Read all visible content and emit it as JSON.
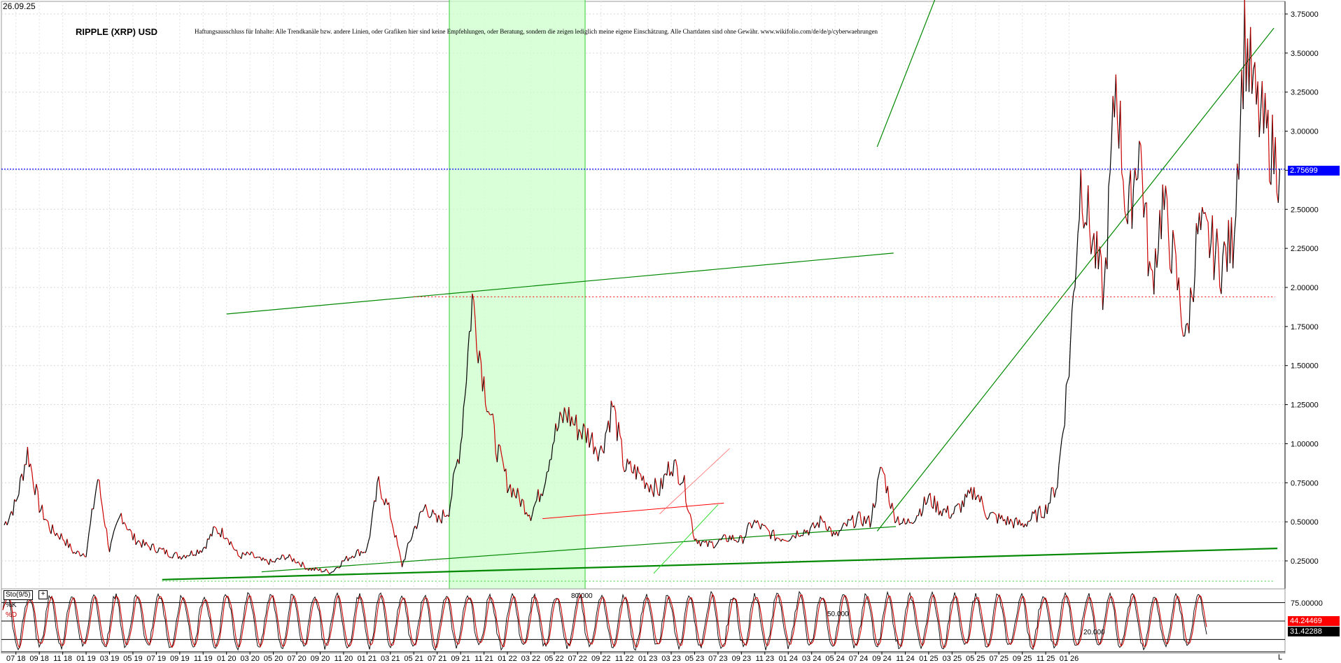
{
  "header": {
    "date": "26.09.25",
    "title": "RIPPLE (XRP) USD",
    "disclaimer": "Haftungsausschluss für Inhalte: Alle Trendkanäle bzw. andere Linien, oder Grafiken hier sind keine Empfehlungen, oder Beratung, sondern die zeigen lediglich meine eigene Einschätzung. Alle Chartdaten sind ohne Gewähr.  www.wikifolio.com/de/de/p/cyberwaehrungen"
  },
  "colors": {
    "price_up": "#000000",
    "price_down": "#cc0000",
    "trend": "#008800",
    "highlight": "#ccffcc",
    "current_line": "#0000ff",
    "support_line": "#ff0000",
    "stoch_k": "#000000",
    "stoch_d": "#cc0000"
  },
  "chart_data": [
    {
      "type": "line",
      "title": "RIPPLE (XRP) USD",
      "x_unit": "month",
      "ylim": [
        0.0,
        3.8
      ],
      "y_ticks": [
        "3.75000",
        "3.50000",
        "3.25000",
        "3.00000",
        "2.75000",
        "2.50000",
        "2.25000",
        "2.00000",
        "1.75000",
        "1.50000",
        "1.25000",
        "1.00000",
        "0.75000",
        "0.50000",
        "0.25000"
      ],
      "x_ticks": [
        "07 18",
        "09 18",
        "11 18",
        "01 19",
        "03 19",
        "05 19",
        "07 19",
        "09 19",
        "11 19",
        "01 20",
        "03 20",
        "05 20",
        "07 20",
        "09 20",
        "11 20",
        "01 21",
        "03 21",
        "05 21",
        "07 21",
        "09 21",
        "11 21",
        "01 22",
        "03 22",
        "05 22",
        "07 22",
        "09 22",
        "11 22",
        "01 23",
        "03 23",
        "05 23",
        "07 23",
        "09 23",
        "11 23",
        "01 24",
        "03 24",
        "05 24",
        "07 24",
        "09 24",
        "11 24",
        "01 25",
        "03 25",
        "05 25",
        "07 25",
        "09 25",
        "11 25",
        "01 26"
      ],
      "current_value": "2.75699",
      "grid": true,
      "series": [
        {
          "values": [
            [
              "2018-06",
              0.48
            ],
            [
              "2018-07",
              0.62
            ],
            [
              "2018-08",
              0.95
            ],
            [
              "2018-09",
              0.6
            ],
            [
              "2018-10",
              0.45
            ],
            [
              "2018-11",
              0.4
            ],
            [
              "2018-12",
              0.3
            ],
            [
              "2019-01",
              0.3
            ],
            [
              "2019-02",
              0.78
            ],
            [
              "2019-03",
              0.32
            ],
            [
              "2019-04",
              0.55
            ],
            [
              "2019-05",
              0.4
            ],
            [
              "2019-06",
              0.35
            ],
            [
              "2019-07",
              0.33
            ],
            [
              "2019-08",
              0.3
            ],
            [
              "2019-09",
              0.28
            ],
            [
              "2019-10",
              0.3
            ],
            [
              "2019-11",
              0.33
            ],
            [
              "2019-12",
              0.45
            ],
            [
              "2020-01",
              0.42
            ],
            [
              "2020-02",
              0.28
            ],
            [
              "2020-03",
              0.29
            ],
            [
              "2020-04",
              0.25
            ],
            [
              "2020-05",
              0.24
            ],
            [
              "2020-06",
              0.28
            ],
            [
              "2020-07",
              0.25
            ],
            [
              "2020-08",
              0.2
            ],
            [
              "2020-09",
              0.19
            ],
            [
              "2020-10",
              0.18
            ],
            [
              "2020-11",
              0.25
            ],
            [
              "2020-12",
              0.3
            ],
            [
              "2021-01",
              0.32
            ],
            [
              "2021-02",
              0.75
            ],
            [
              "2021-03",
              0.55
            ],
            [
              "2021-04",
              0.22
            ],
            [
              "2021-05",
              0.45
            ],
            [
              "2021-06",
              0.6
            ],
            [
              "2021-07",
              0.5
            ],
            [
              "2021-08",
              0.58
            ],
            [
              "2021-09",
              1.0
            ],
            [
              "2021-10",
              1.93
            ],
            [
              "2021-11",
              1.4
            ],
            [
              "2021-12",
              1.0
            ],
            [
              "2022-01",
              0.75
            ],
            [
              "2022-02",
              0.65
            ],
            [
              "2022-03",
              0.55
            ],
            [
              "2022-04",
              0.72
            ],
            [
              "2022-05",
              1.05
            ],
            [
              "2022-06",
              1.2
            ],
            [
              "2022-07",
              1.1
            ],
            [
              "2022-08",
              1.05
            ],
            [
              "2022-09",
              0.95
            ],
            [
              "2022-10",
              1.25
            ],
            [
              "2022-11",
              0.85
            ],
            [
              "2022-12",
              0.82
            ],
            [
              "2023-01",
              0.75
            ],
            [
              "2023-02",
              0.7
            ],
            [
              "2023-03",
              0.88
            ],
            [
              "2023-04",
              0.78
            ],
            [
              "2023-05",
              0.4
            ],
            [
              "2023-06",
              0.35
            ],
            [
              "2023-07",
              0.37
            ],
            [
              "2023-08",
              0.4
            ],
            [
              "2023-09",
              0.38
            ],
            [
              "2023-10",
              0.5
            ],
            [
              "2023-11",
              0.45
            ],
            [
              "2023-12",
              0.4
            ],
            [
              "2024-01",
              0.4
            ],
            [
              "2024-02",
              0.44
            ],
            [
              "2024-03",
              0.45
            ],
            [
              "2024-04",
              0.52
            ],
            [
              "2024-05",
              0.4
            ],
            [
              "2024-06",
              0.48
            ],
            [
              "2024-07",
              0.52
            ],
            [
              "2024-08",
              0.5
            ],
            [
              "2024-09",
              0.85
            ],
            [
              "2024-10",
              0.55
            ],
            [
              "2024-11",
              0.48
            ],
            [
              "2024-12",
              0.55
            ],
            [
              "2025-01",
              0.65
            ],
            [
              "2025-02",
              0.58
            ],
            [
              "2025-03",
              0.55
            ],
            [
              "2025-04",
              0.62
            ],
            [
              "2025-05",
              0.7
            ],
            [
              "2025-06",
              0.55
            ],
            [
              "2025-07",
              0.52
            ],
            [
              "2025-08",
              0.5
            ],
            [
              "2025-09",
              0.48
            ],
            [
              "2025-10",
              0.53
            ],
            [
              "2025-11",
              0.58
            ],
            [
              "2025-12",
              0.75
            ],
            [
              "2026-01",
              1.5
            ],
            [
              "2026-02",
              2.7
            ],
            [
              "2026-03",
              2.3
            ],
            [
              "2026-04",
              1.95
            ],
            [
              "2026-05",
              3.35
            ],
            [
              "2026-06",
              2.4
            ],
            [
              "2026-07",
              2.95
            ],
            [
              "2026-08",
              2.0
            ],
            [
              "2026-09",
              2.55
            ],
            [
              "2026-10",
              2.15
            ],
            [
              "2026-11",
              1.65
            ],
            [
              "2026-12",
              2.35
            ],
            [
              "2027-01",
              2.3
            ],
            [
              "2027-02",
              2.15
            ],
            [
              "2027-03",
              2.3
            ],
            [
              "2027-04",
              3.6
            ],
            [
              "2027-05",
              3.15
            ],
            [
              "2027-06",
              2.95
            ],
            [
              "2027-07",
              2.76
            ]
          ]
        }
      ]
    },
    {
      "type": "line",
      "title": "Sto(9/5)",
      "legend": [
        "%K",
        "%D"
      ],
      "ylim": [
        0,
        100
      ],
      "levels": [
        "80.000",
        "50.000",
        "20.000"
      ],
      "y_ticks": [
        "75.00000"
      ],
      "k_value": "44.24469",
      "d_value": "31.42288"
    }
  ],
  "corner": {
    "label": "L"
  }
}
